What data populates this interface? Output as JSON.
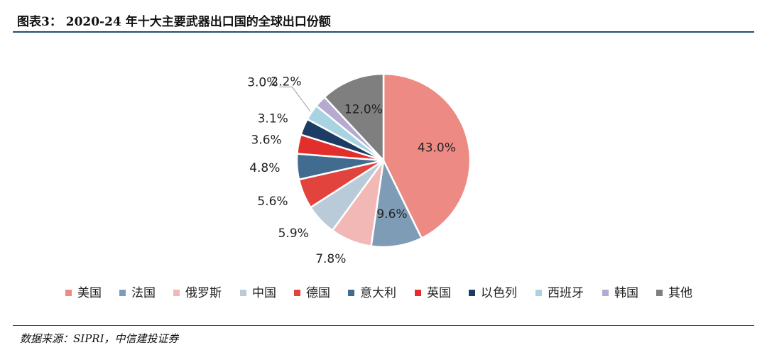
{
  "header": {
    "title": "图表3： 2020-24 年十大主要武器出口国的全球出口份额"
  },
  "footer": {
    "source": "数据来源：SIPRI，中信建投证券"
  },
  "chart_data": {
    "type": "pie",
    "unit": "%",
    "legend_position": "bottom",
    "slices": [
      {
        "name": "美国",
        "value": 43.0,
        "label": "43.0%",
        "color": "#ee8a84"
      },
      {
        "name": "法国",
        "value": 9.6,
        "label": "9.6%",
        "color": "#7f9cb6"
      },
      {
        "name": "俄罗斯",
        "value": 7.8,
        "label": "7.8%",
        "color": "#f2b8b6"
      },
      {
        "name": "中国",
        "value": 5.9,
        "label": "5.9%",
        "color": "#b9cad8"
      },
      {
        "name": "德国",
        "value": 5.6,
        "label": "5.6%",
        "color": "#e3433d"
      },
      {
        "name": "意大利",
        "value": 4.8,
        "label": "4.8%",
        "color": "#416b8f"
      },
      {
        "name": "英国",
        "value": 3.6,
        "label": "3.6%",
        "color": "#e32f2b"
      },
      {
        "name": "以色列",
        "value": 3.1,
        "label": "3.1%",
        "color": "#1d3c64"
      },
      {
        "name": "西班牙",
        "value": 3.0,
        "label": "3.0%",
        "color": "#a7d3e2"
      },
      {
        "name": "韩国",
        "value": 2.2,
        "label": "2.2%",
        "color": "#b7aad1"
      },
      {
        "name": "其他",
        "value": 12.0,
        "label": "12.0%",
        "color": "#7f7f7f"
      }
    ]
  }
}
